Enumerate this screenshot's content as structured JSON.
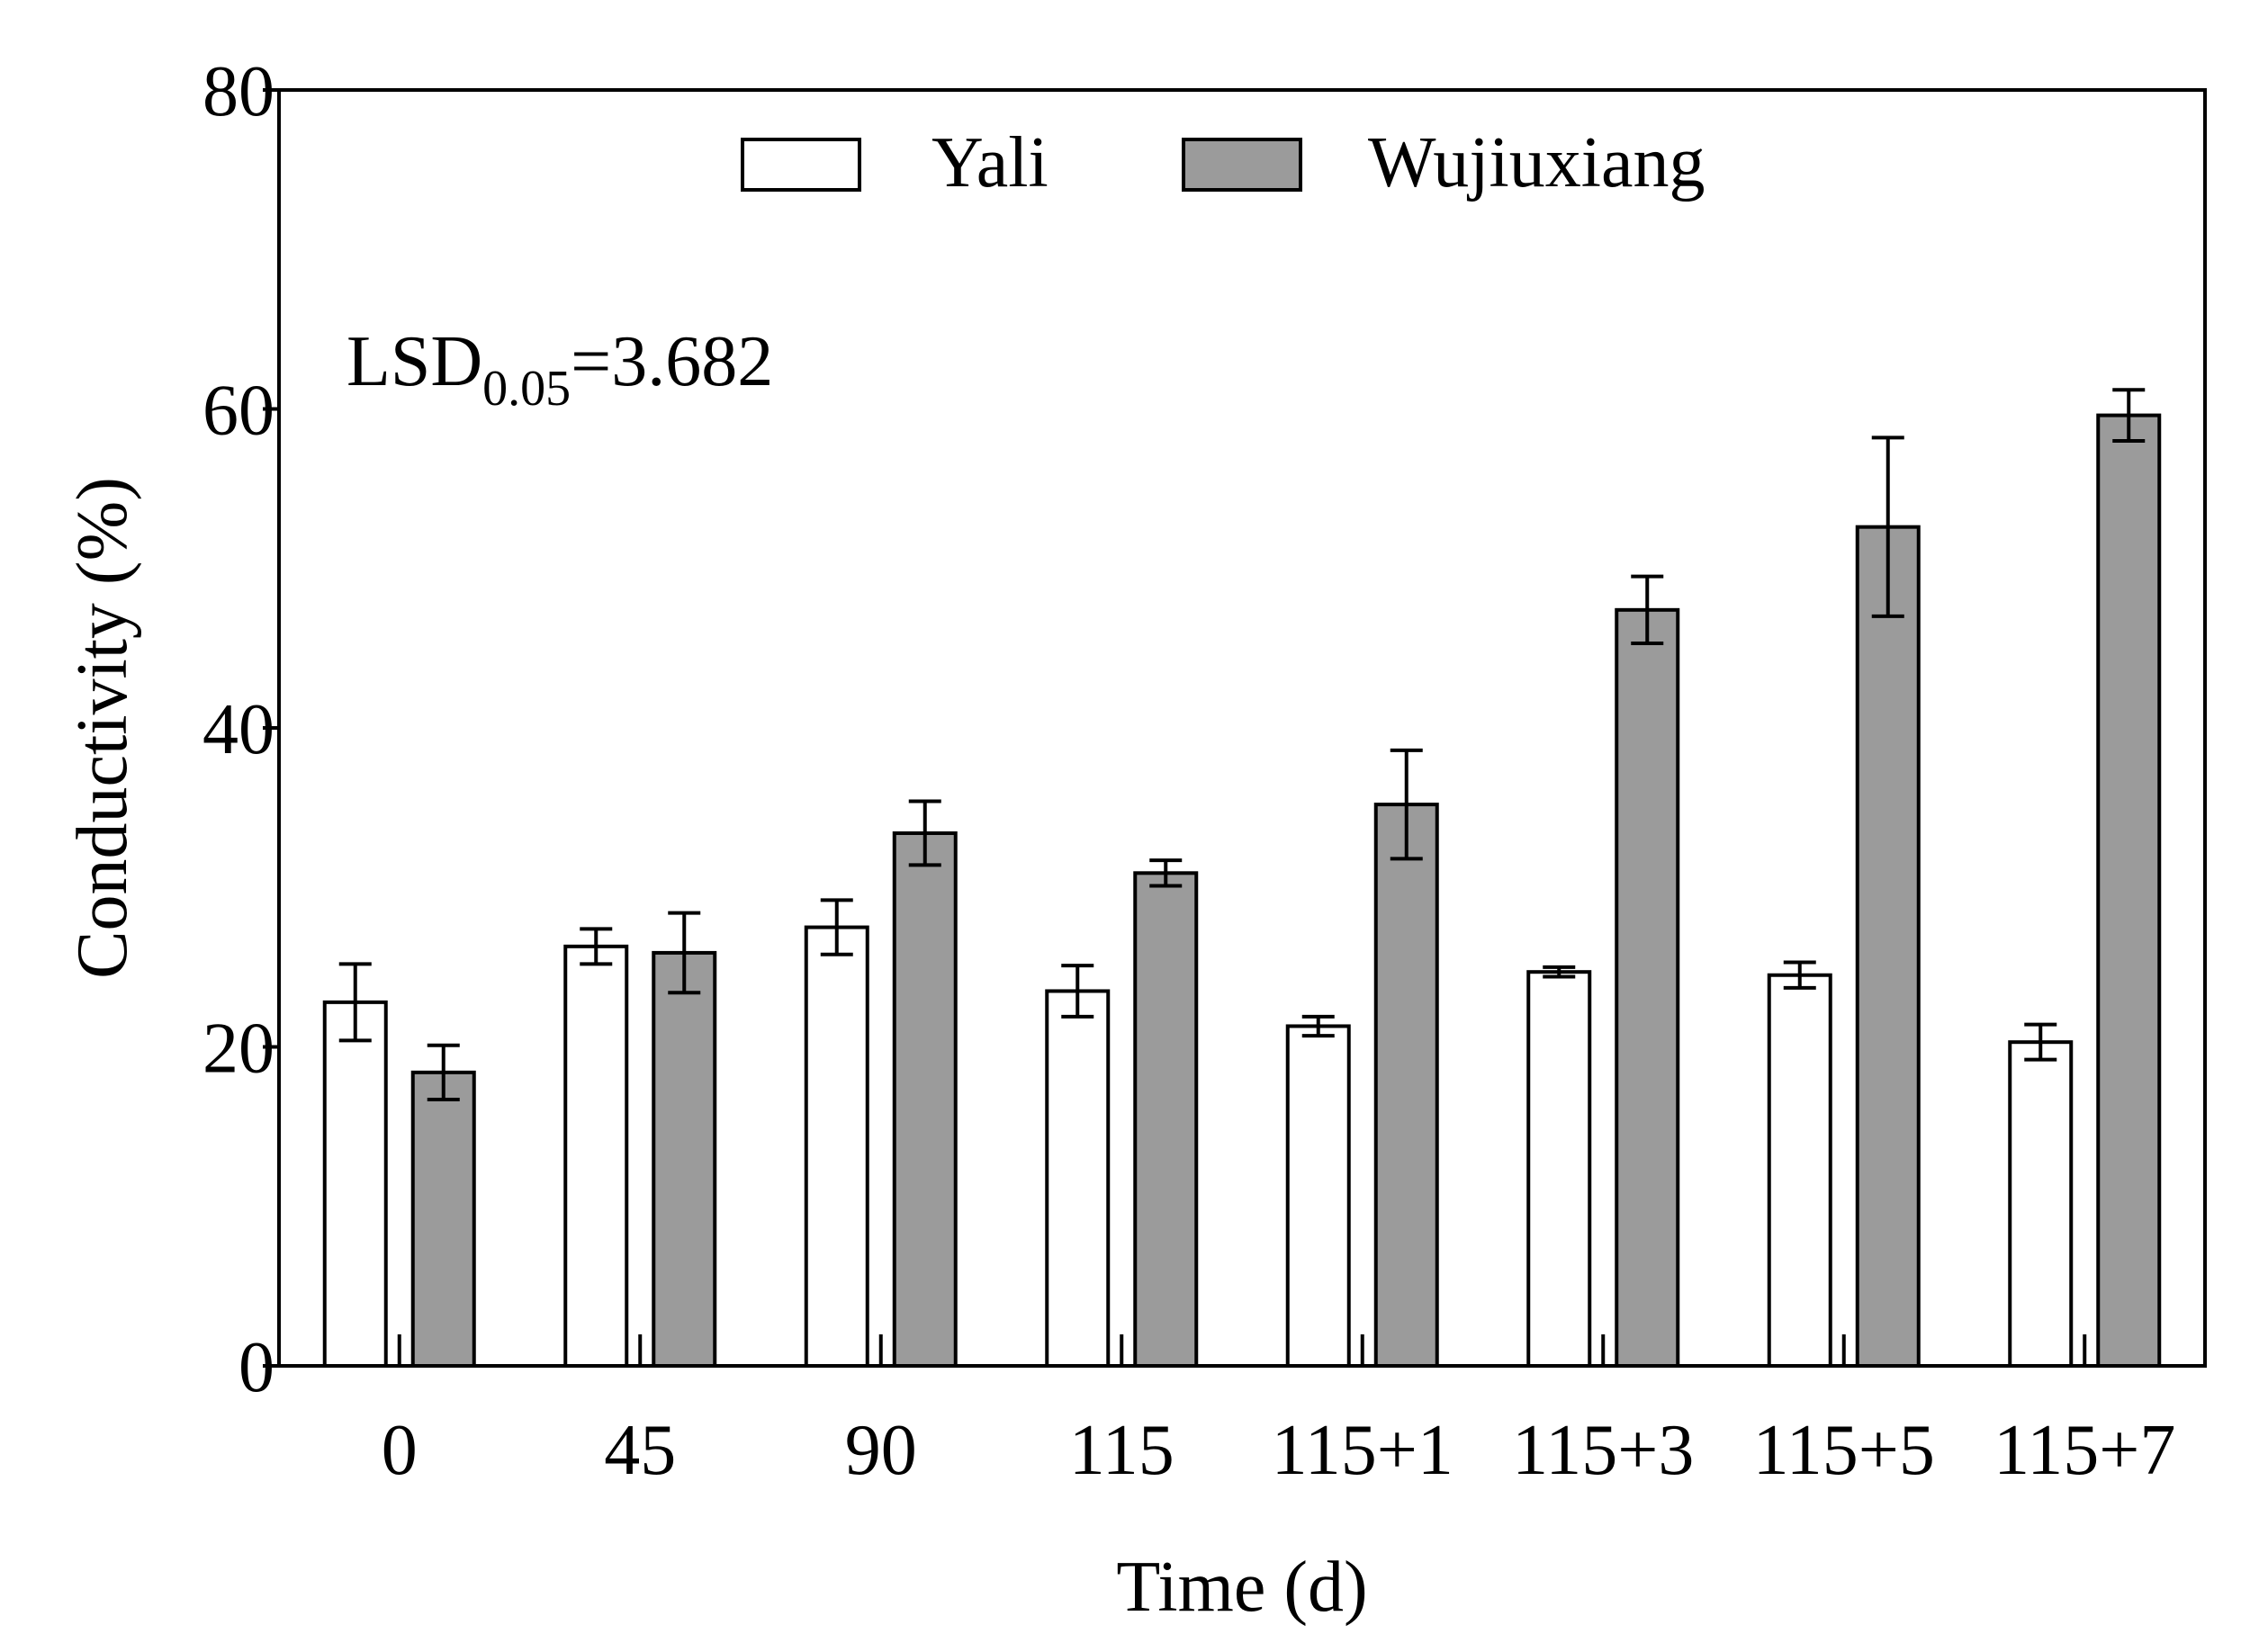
{
  "chart_data": {
    "type": "bar",
    "title": "",
    "xlabel": "Time (d)",
    "ylabel": "Conductivity (%)",
    "ylim": [
      0,
      80
    ],
    "yticks": [
      0,
      20,
      40,
      60,
      80
    ],
    "grid": false,
    "legend_position": "top",
    "categories": [
      "0",
      "45",
      "90",
      "115",
      "115+1",
      "115+3",
      "115+5",
      "115+7"
    ],
    "series": [
      {
        "name": "Yali",
        "color": "#ffffff",
        "values": [
          22.8,
          26.3,
          27.5,
          23.5,
          21.3,
          24.7,
          24.5,
          20.3
        ],
        "errors": [
          2.4,
          1.1,
          1.7,
          1.6,
          0.6,
          0.3,
          0.8,
          1.1
        ]
      },
      {
        "name": "Wujiuxiang",
        "color": "#9b9b9b",
        "values": [
          18.4,
          25.9,
          33.4,
          30.9,
          35.2,
          47.4,
          52.6,
          59.6
        ],
        "errors": [
          1.7,
          2.5,
          2.0,
          0.8,
          3.4,
          2.1,
          5.6,
          1.6
        ]
      }
    ],
    "annotations": [
      {
        "main": "LSD",
        "subscript": "0.05",
        "suffix": "=3.682"
      }
    ]
  }
}
